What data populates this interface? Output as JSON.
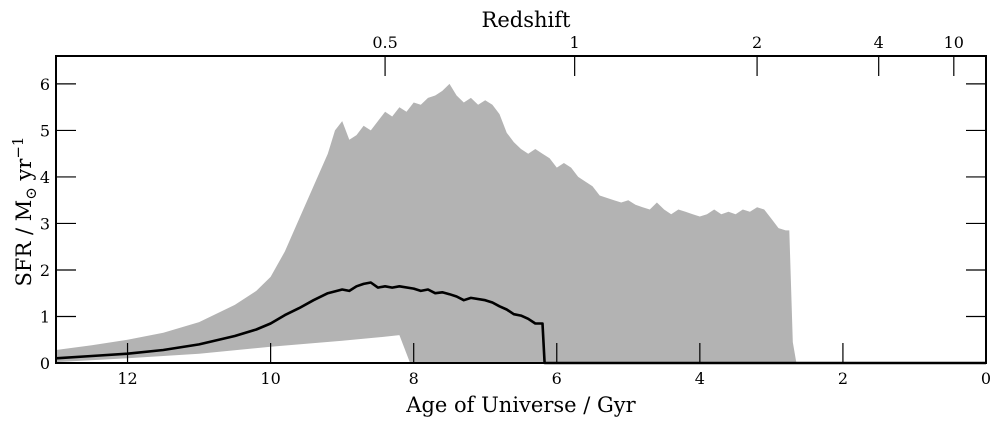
{
  "chart_data": {
    "type": "area",
    "xlabel": "Age of Universe / Gyr",
    "ylabel": "SFR / M",
    "ylabel_sub": "⊙",
    "ylabel_rest": " yr",
    "ylabel_sup": "−1",
    "top_axis_label": "Redshift",
    "xlim": [
      13,
      0
    ],
    "ylim": [
      0,
      6.6
    ],
    "x_ticks": [
      12,
      10,
      8,
      6,
      4,
      2,
      0
    ],
    "x_tick_labels": [
      "12",
      "10",
      "8",
      "6",
      "4",
      "2",
      "0"
    ],
    "y_ticks": [
      0,
      1,
      2,
      3,
      4,
      5,
      6
    ],
    "y_tick_labels": [
      "0",
      "1",
      "2",
      "3",
      "4",
      "5",
      "6"
    ],
    "top_ticks": [
      {
        "age": 8.4,
        "label": "0.5"
      },
      {
        "age": 5.75,
        "label": "1"
      },
      {
        "age": 3.2,
        "label": "2"
      },
      {
        "age": 1.5,
        "label": "4"
      },
      {
        "age": 0.45,
        "label": "10"
      }
    ],
    "colors": {
      "band": "#b3b3b3",
      "line": "#000000"
    },
    "band_upper": [
      [
        13.0,
        0.28
      ],
      [
        12.5,
        0.38
      ],
      [
        12.0,
        0.5
      ],
      [
        11.5,
        0.65
      ],
      [
        11.0,
        0.88
      ],
      [
        10.5,
        1.25
      ],
      [
        10.2,
        1.55
      ],
      [
        10.0,
        1.85
      ],
      [
        9.8,
        2.4
      ],
      [
        9.6,
        3.1
      ],
      [
        9.4,
        3.8
      ],
      [
        9.2,
        4.5
      ],
      [
        9.1,
        5.0
      ],
      [
        9.0,
        5.2
      ],
      [
        8.9,
        4.8
      ],
      [
        8.8,
        4.9
      ],
      [
        8.7,
        5.1
      ],
      [
        8.6,
        5.0
      ],
      [
        8.5,
        5.2
      ],
      [
        8.4,
        5.4
      ],
      [
        8.3,
        5.3
      ],
      [
        8.2,
        5.5
      ],
      [
        8.1,
        5.4
      ],
      [
        8.0,
        5.6
      ],
      [
        7.9,
        5.55
      ],
      [
        7.8,
        5.7
      ],
      [
        7.7,
        5.75
      ],
      [
        7.6,
        5.85
      ],
      [
        7.5,
        6.0
      ],
      [
        7.4,
        5.75
      ],
      [
        7.3,
        5.6
      ],
      [
        7.2,
        5.7
      ],
      [
        7.1,
        5.55
      ],
      [
        7.0,
        5.65
      ],
      [
        6.9,
        5.55
      ],
      [
        6.8,
        5.35
      ],
      [
        6.7,
        4.95
      ],
      [
        6.6,
        4.75
      ],
      [
        6.5,
        4.6
      ],
      [
        6.4,
        4.5
      ],
      [
        6.3,
        4.6
      ],
      [
        6.2,
        4.5
      ],
      [
        6.1,
        4.4
      ],
      [
        6.0,
        4.2
      ],
      [
        5.9,
        4.3
      ],
      [
        5.8,
        4.2
      ],
      [
        5.7,
        4.0
      ],
      [
        5.6,
        3.9
      ],
      [
        5.5,
        3.8
      ],
      [
        5.4,
        3.6
      ],
      [
        5.3,
        3.55
      ],
      [
        5.2,
        3.5
      ],
      [
        5.1,
        3.45
      ],
      [
        5.0,
        3.5
      ],
      [
        4.9,
        3.4
      ],
      [
        4.8,
        3.35
      ],
      [
        4.7,
        3.3
      ],
      [
        4.6,
        3.45
      ],
      [
        4.5,
        3.3
      ],
      [
        4.4,
        3.2
      ],
      [
        4.3,
        3.3
      ],
      [
        4.2,
        3.25
      ],
      [
        4.1,
        3.2
      ],
      [
        4.0,
        3.15
      ],
      [
        3.9,
        3.2
      ],
      [
        3.8,
        3.3
      ],
      [
        3.7,
        3.2
      ],
      [
        3.6,
        3.25
      ],
      [
        3.5,
        3.2
      ],
      [
        3.4,
        3.3
      ],
      [
        3.3,
        3.25
      ],
      [
        3.2,
        3.35
      ],
      [
        3.1,
        3.3
      ],
      [
        3.0,
        3.1
      ],
      [
        2.9,
        2.9
      ],
      [
        2.8,
        2.85
      ],
      [
        2.75,
        2.85
      ],
      [
        2.7,
        0.45
      ],
      [
        2.65,
        0.0
      ]
    ],
    "band_lower": [
      [
        13.0,
        0.02
      ],
      [
        12.0,
        0.1
      ],
      [
        11.0,
        0.2
      ],
      [
        10.0,
        0.35
      ],
      [
        9.0,
        0.48
      ],
      [
        8.5,
        0.55
      ],
      [
        8.2,
        0.6
      ],
      [
        8.05,
        0.0
      ]
    ],
    "median_line": [
      [
        13.0,
        0.1
      ],
      [
        12.5,
        0.15
      ],
      [
        12.0,
        0.2
      ],
      [
        11.5,
        0.28
      ],
      [
        11.0,
        0.4
      ],
      [
        10.5,
        0.58
      ],
      [
        10.2,
        0.72
      ],
      [
        10.0,
        0.85
      ],
      [
        9.8,
        1.03
      ],
      [
        9.6,
        1.18
      ],
      [
        9.4,
        1.35
      ],
      [
        9.2,
        1.5
      ],
      [
        9.0,
        1.58
      ],
      [
        8.9,
        1.55
      ],
      [
        8.8,
        1.65
      ],
      [
        8.7,
        1.7
      ],
      [
        8.6,
        1.73
      ],
      [
        8.5,
        1.62
      ],
      [
        8.4,
        1.65
      ],
      [
        8.3,
        1.62
      ],
      [
        8.2,
        1.65
      ],
      [
        8.0,
        1.6
      ],
      [
        7.9,
        1.55
      ],
      [
        7.8,
        1.58
      ],
      [
        7.7,
        1.5
      ],
      [
        7.6,
        1.52
      ],
      [
        7.5,
        1.48
      ],
      [
        7.4,
        1.43
      ],
      [
        7.3,
        1.35
      ],
      [
        7.2,
        1.4
      ],
      [
        7.0,
        1.35
      ],
      [
        6.9,
        1.3
      ],
      [
        6.8,
        1.22
      ],
      [
        6.7,
        1.15
      ],
      [
        6.6,
        1.05
      ],
      [
        6.5,
        1.02
      ],
      [
        6.4,
        0.95
      ],
      [
        6.3,
        0.85
      ],
      [
        6.2,
        0.85
      ],
      [
        6.17,
        0.0
      ],
      [
        0.0,
        0.0
      ]
    ]
  }
}
